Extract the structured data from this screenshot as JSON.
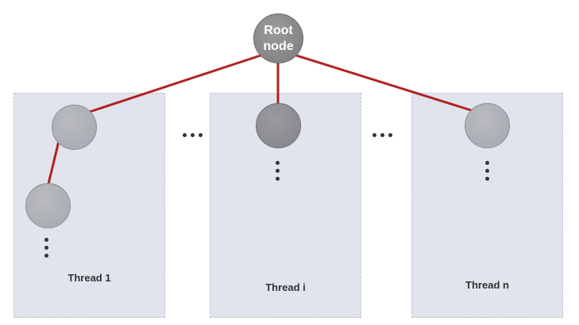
{
  "root": {
    "label_line1": "Root",
    "label_line2": "node"
  },
  "threads": [
    {
      "label": "Thread 1"
    },
    {
      "label": "Thread i"
    },
    {
      "label": "Thread n"
    }
  ],
  "colors": {
    "edge": "#b22222",
    "box": "#e1e4ec",
    "root": "#8a8a8a",
    "node": "#aeb0b6"
  }
}
